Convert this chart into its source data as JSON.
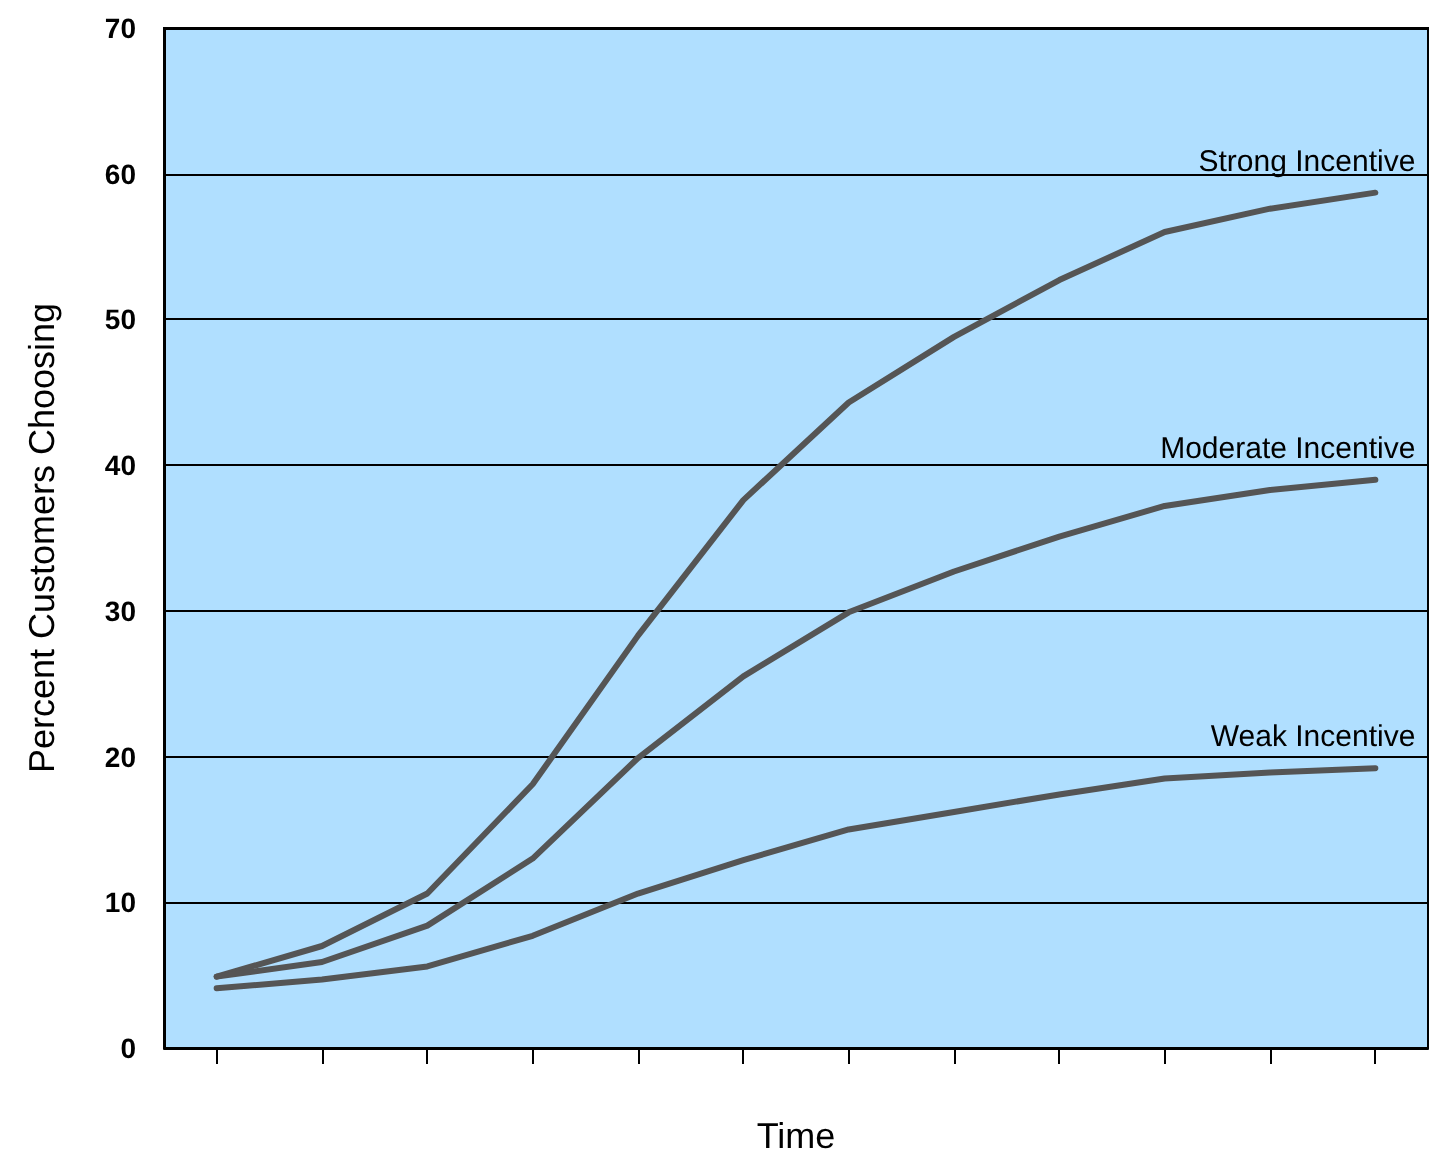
{
  "chart_data": {
    "type": "line",
    "xlabel": "Time",
    "ylabel": "Percent Customers Choosing",
    "categories": [
      null,
      null,
      null,
      null,
      null,
      null,
      null,
      null,
      null,
      null,
      null,
      null
    ],
    "series": [
      {
        "name": "Strong Incentive",
        "color": "#555555",
        "values": [
          4.9,
          7,
          10.6,
          18.1,
          28.3,
          37.6,
          44.3,
          48.8,
          52.7,
          56,
          57.6,
          58.7
        ]
      },
      {
        "name": "Moderate Incentive",
        "color": "#555555",
        "values": [
          4.9,
          5.9,
          8.4,
          13,
          19.9,
          25.5,
          29.9,
          32.7,
          35.1,
          37.2,
          38.3,
          39
        ]
      },
      {
        "name": "Weak Incentive",
        "color": "#555555",
        "values": [
          4.1,
          4.7,
          5.6,
          7.7,
          10.6,
          12.9,
          15,
          16.2,
          17.4,
          18.5,
          18.9,
          19.2
        ]
      }
    ],
    "ylim": [
      0,
      70
    ],
    "yticks": [
      0,
      10,
      20,
      30,
      40,
      50,
      60,
      70
    ],
    "grid": "y",
    "legend": false,
    "marker": "none",
    "line_style": "solid"
  }
}
